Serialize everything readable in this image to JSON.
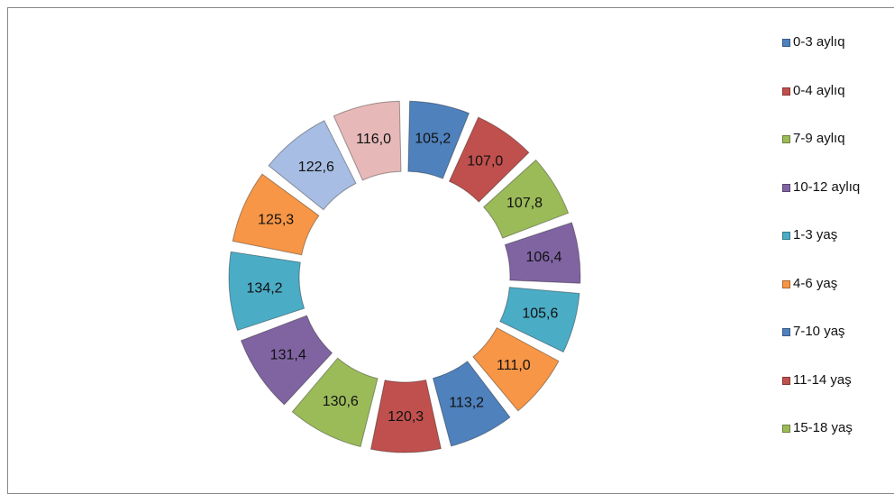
{
  "chart_data": {
    "type": "doughnut",
    "categories": [
      "0-3 aylıq",
      "0-4 aylıq",
      "7-9 aylıq",
      "10-12 aylıq",
      "1-3 yaş",
      "4-6 yaş",
      "7-10 yaş",
      "11-14 yaş",
      "15-18 yaş",
      null,
      null,
      null,
      null,
      null
    ],
    "values": [
      105.2,
      107.0,
      107.8,
      106.4,
      105.6,
      111.0,
      113.2,
      120.3,
      130.6,
      131.4,
      134.2,
      125.3,
      122.6,
      116.0
    ],
    "value_labels": [
      "105,2",
      "107,0",
      "107,8",
      "106,4",
      "105,6",
      "111,0",
      "113,2",
      "120,3",
      "130,6",
      "131,4",
      "134,2",
      "125,3",
      "122,6",
      "116,0"
    ],
    "colors": [
      "#4f81bd",
      "#c0504d",
      "#9bbb59",
      "#8064a2",
      "#4bacc6",
      "#f79646",
      "#4f81bd",
      "#c0504d",
      "#9bbb59",
      "#8064a2",
      "#4bacc6",
      "#f79646",
      "#a7bde3",
      "#e6b9b8"
    ],
    "legend": "right"
  }
}
